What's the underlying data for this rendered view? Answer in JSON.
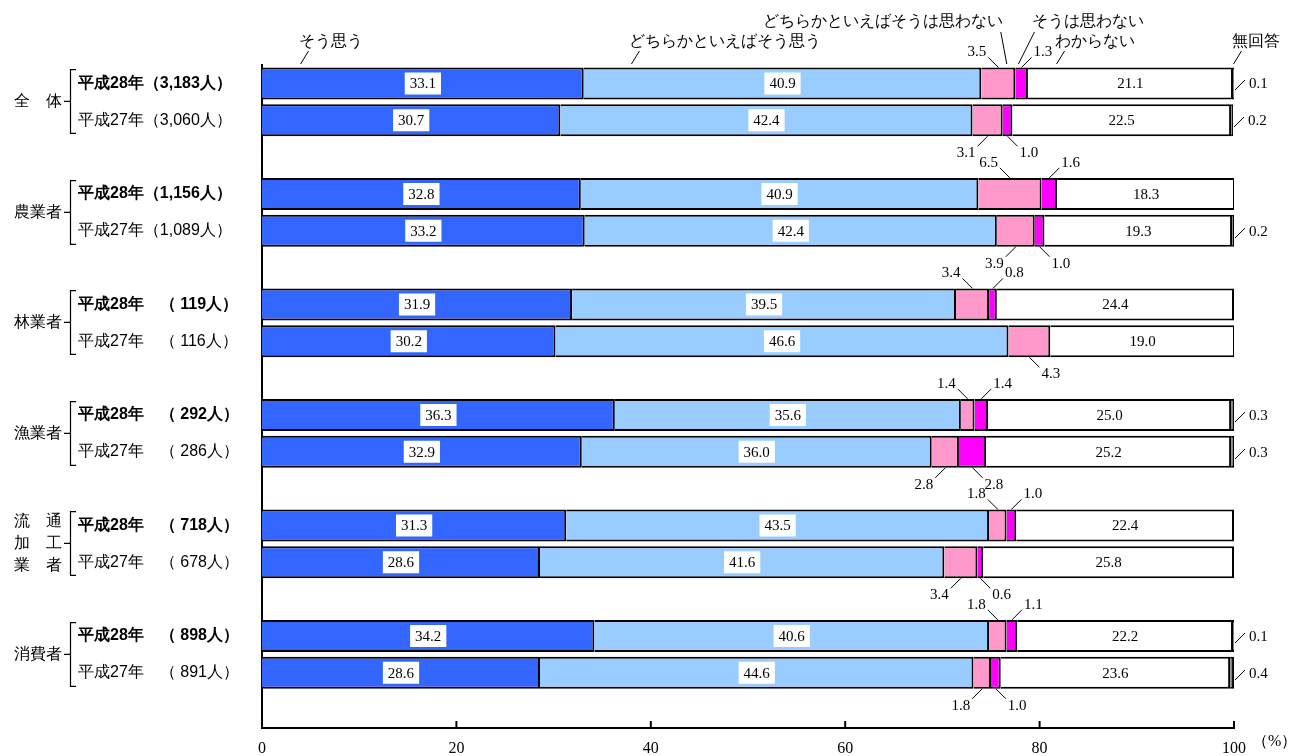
{
  "chart_data": {
    "type": "bar",
    "orientation": "horizontal",
    "stacked": true,
    "legend": "top",
    "categories": [
      "平成28年（3,183人）",
      "平成27年（3,060人）",
      null,
      "平成28年（1,156人）",
      "平成27年（1,089人）",
      null,
      "平成28年　（ 119人）",
      "平成27年　（ 116人）",
      null,
      "平成28年　（ 292人）",
      "平成27年　（ 286人）",
      null,
      "平成28年　（ 718人）",
      "平成27年　（ 678人）",
      null,
      "平成28年　（ 898人）",
      "平成27年　（ 891人）",
      null
    ],
    "series": [
      {
        "name": "そう思う",
        "color": "#3366ff",
        "values": [
          33.1,
          30.7,
          null,
          32.8,
          33.2,
          null,
          31.9,
          30.2,
          null,
          36.3,
          32.9,
          null,
          31.3,
          28.6,
          null,
          34.2,
          28.6,
          null
        ],
        "value_labels": [
          "33.1",
          "30.7",
          null,
          "32.8",
          "33.2",
          null,
          "31.9",
          "30.2",
          null,
          "36.3",
          "32.9",
          null,
          "31.3",
          "28.6",
          null,
          "34.2",
          "28.6",
          null
        ]
      },
      {
        "name": "どちらかといえばそう思う",
        "color": "#99ccff",
        "values": [
          40.9,
          42.4,
          null,
          40.9,
          42.4,
          null,
          39.5,
          46.6,
          null,
          35.6,
          36.0,
          null,
          43.5,
          41.6,
          null,
          40.6,
          44.6,
          null
        ],
        "value_labels": [
          "40.9",
          "42.4",
          null,
          "40.9",
          "42.4",
          null,
          "39.5",
          "46.6",
          null,
          "35.6",
          "36.0",
          null,
          "43.5",
          "41.6",
          null,
          "40.6",
          "44.6",
          null
        ]
      },
      {
        "name": "どちらかといえばそうは思わない",
        "color": "#ff99cc",
        "values": [
          3.5,
          3.1,
          null,
          6.5,
          3.9,
          null,
          3.4,
          4.3,
          null,
          1.4,
          2.8,
          null,
          1.8,
          3.4,
          null,
          1.8,
          1.8,
          null
        ],
        "value_labels": [
          "3.5",
          "3.1",
          null,
          "6.5",
          "3.9",
          null,
          "3.4",
          "4.3",
          null,
          "1.4",
          "2.8",
          null,
          "1.8",
          "3.4",
          null,
          "1.8",
          "1.8",
          null
        ]
      },
      {
        "name": "そうは思わない",
        "color": "#ff00ff",
        "values": [
          1.3,
          1.0,
          null,
          1.6,
          1.0,
          null,
          0.8,
          null,
          null,
          1.4,
          2.8,
          null,
          1.0,
          0.6,
          null,
          1.1,
          1.0,
          null
        ],
        "value_labels": [
          "1.3",
          "1.0",
          null,
          "1.6",
          "1.0",
          null,
          "0.8",
          null,
          null,
          "1.4",
          "2.8",
          null,
          "1.0",
          "0.6",
          null,
          "1.1",
          "1.0",
          null
        ]
      },
      {
        "name": "わからない",
        "color": "#ffffff",
        "values": [
          21.1,
          22.5,
          null,
          18.3,
          19.3,
          null,
          24.4,
          19.0,
          null,
          25.0,
          25.2,
          null,
          22.4,
          25.8,
          null,
          22.2,
          23.6,
          null
        ],
        "value_labels": [
          "21.1",
          "22.5",
          null,
          "18.3",
          "19.3",
          null,
          "24.4",
          "19.0",
          null,
          "25.0",
          "25.2",
          null,
          "22.4",
          "25.8",
          null,
          "22.2",
          "23.6",
          null
        ]
      },
      {
        "name": "無回答",
        "color": "#808080",
        "values": [
          0.1,
          0.2,
          null,
          null,
          0.2,
          null,
          null,
          null,
          null,
          0.3,
          0.3,
          null,
          null,
          null,
          null,
          0.1,
          0.4,
          null
        ],
        "value_labels": [
          "0.1",
          "0.2",
          null,
          null,
          "0.2",
          null,
          null,
          null,
          null,
          "0.3",
          "0.3",
          null,
          null,
          null,
          null,
          "0.1",
          "0.4",
          null
        ]
      }
    ],
    "xlim": [
      0,
      100
    ],
    "xticks": [
      0,
      20,
      40,
      60,
      80,
      100
    ],
    "xlabel": "（%）",
    "annotations": [
      "全　体",
      "農業者",
      "林業者",
      "漁業者",
      "流　通加　工業　者",
      "消費者"
    ]
  }
}
